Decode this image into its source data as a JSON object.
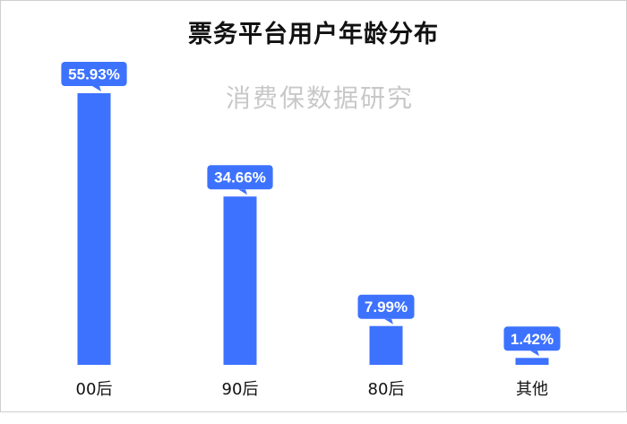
{
  "chart_data": {
    "type": "bar",
    "title": "票务平台用户年龄分布",
    "watermark": "消费保数据研究",
    "categories": [
      "00后",
      "90后",
      "80后",
      "其他"
    ],
    "values": [
      55.93,
      34.66,
      7.99,
      1.42
    ],
    "value_labels": [
      "55.93%",
      "34.66%",
      "7.99%",
      "1.42%"
    ],
    "unit": "%",
    "ylim": [
      0,
      55.93
    ],
    "grid": false,
    "legend": "none",
    "colors": {
      "bar": "#3d72ff",
      "label_bg": "#3d72ff",
      "label_text": "#ffffff",
      "tick_text": "#111111"
    }
  }
}
